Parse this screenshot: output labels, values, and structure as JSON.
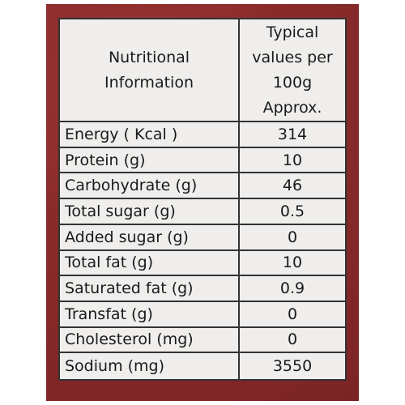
{
  "table": {
    "header": [
      "Nutritional Information",
      "Typical values per 100g Approx."
    ],
    "rows": [
      [
        "Energy ( Kcal )",
        "314"
      ],
      [
        "Protein  (g)",
        "10"
      ],
      [
        "Carbohydrate (g)",
        "46"
      ],
      [
        "Total sugar (g)",
        "0.5"
      ],
      [
        "Added sugar (g)",
        "0"
      ],
      [
        "Total fat (g)",
        "10"
      ],
      [
        "Saturated fat (g)",
        "0.9"
      ],
      [
        "Transfat (g)",
        "0"
      ],
      [
        "Cholesterol (mg)",
        "0"
      ],
      [
        "Sodium (mg)",
        "3550"
      ]
    ]
  }
}
